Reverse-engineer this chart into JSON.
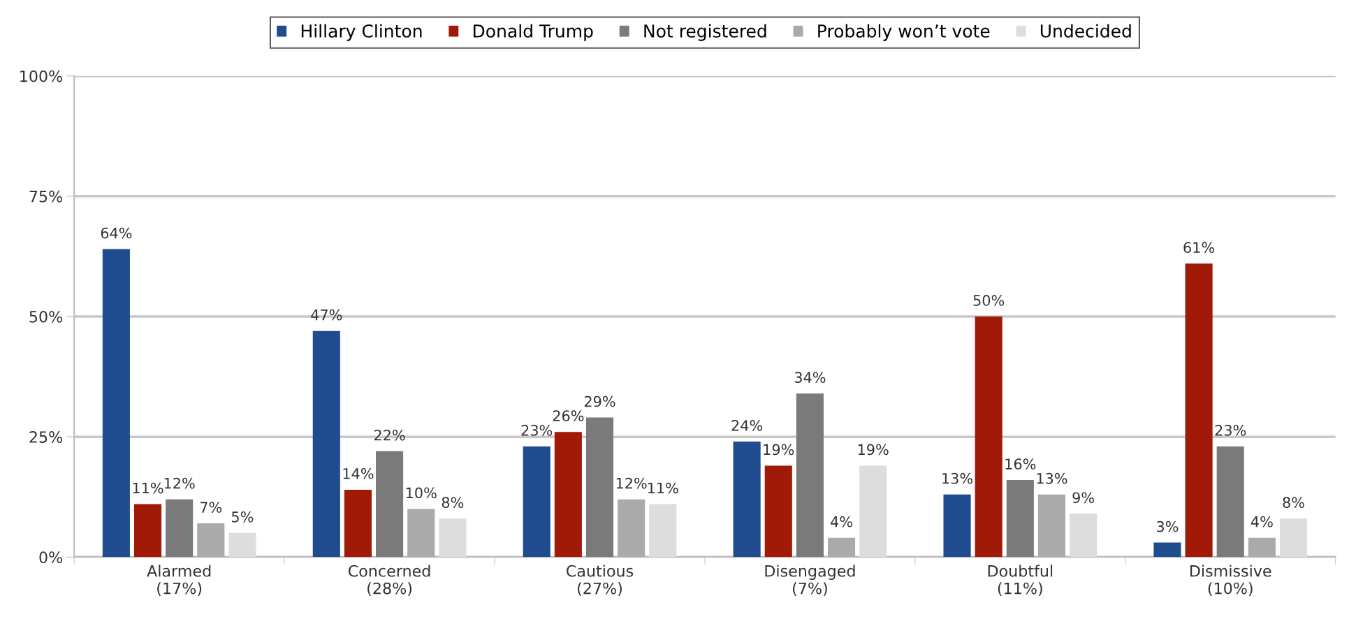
{
  "chart_data": {
    "type": "bar",
    "categories": [
      "Alarmed\n(17%)",
      "Concerned\n(28%)",
      "Cautious\n(27%)",
      "Disengaged\n(7%)",
      "Doubtful\n(11%)",
      "Dismissive\n(10%)"
    ],
    "series": [
      {
        "name": "Hillary Clinton",
        "color": "#1f4b8f",
        "values": [
          64,
          47,
          23,
          24,
          13,
          3
        ],
        "value_labels": [
          "64%",
          "47%",
          "23%",
          "24%",
          "13%",
          "3%"
        ]
      },
      {
        "name": "Donald Trump",
        "color": "#a11a08",
        "values": [
          11,
          14,
          26,
          19,
          50,
          61
        ],
        "value_labels": [
          "11%",
          "14%",
          "26%",
          "19%",
          "50%",
          "61%"
        ]
      },
      {
        "name": "Not registered",
        "color": "#7a7a7a",
        "values": [
          12,
          22,
          29,
          34,
          16,
          23
        ],
        "value_labels": [
          "12%",
          "22%",
          "29%",
          "34%",
          "16%",
          "23%"
        ]
      },
      {
        "name": "Probably won’t vote",
        "color": "#aaaaaa",
        "values": [
          7,
          10,
          12,
          4,
          13,
          4
        ],
        "value_labels": [
          "7%",
          "10%",
          "12%",
          "4%",
          "13%",
          "4%"
        ]
      },
      {
        "name": "Undecided",
        "color": "#dddddd",
        "values": [
          5,
          8,
          11,
          19,
          9,
          8
        ],
        "value_labels": [
          "5%",
          "8%",
          "11%",
          "19%",
          "9%",
          "8%"
        ]
      }
    ],
    "ylim": [
      0,
      100
    ],
    "yticks": [
      {
        "value": 0,
        "label": "0%"
      },
      {
        "value": 25,
        "label": "25%"
      },
      {
        "value": 50,
        "label": "50%"
      },
      {
        "value": 75,
        "label": "75%"
      },
      {
        "value": 100,
        "label": "100%"
      }
    ],
    "grid": "y",
    "legend": "top"
  }
}
